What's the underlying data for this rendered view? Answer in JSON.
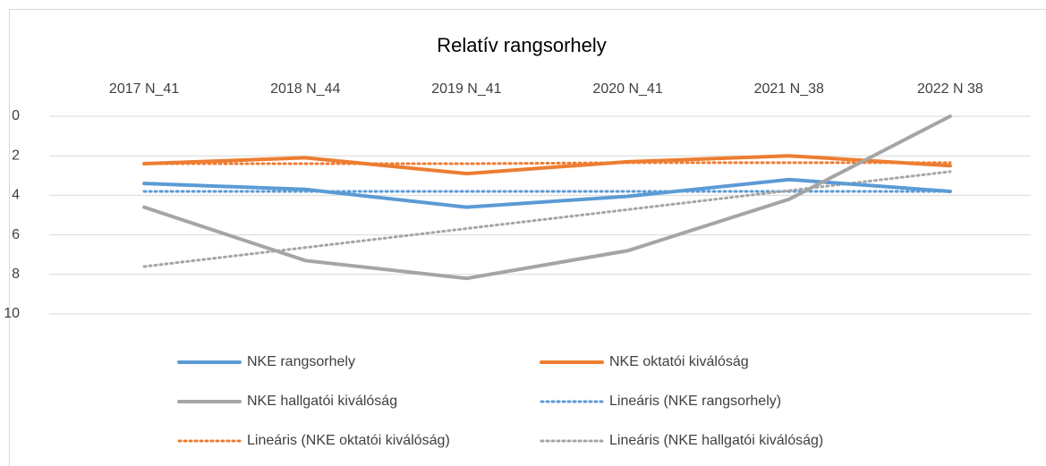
{
  "chart_data": {
    "type": "line",
    "title": "Relatív rangsorhely",
    "categories": [
      "2017 N_41",
      "2018 N_44",
      "2019 N_41",
      "2020 N_41",
      "2021 N_38",
      "2022 N 38"
    ],
    "ylim": [
      0,
      10
    ],
    "yticks": [
      0,
      2,
      4,
      6,
      8,
      10
    ],
    "y_inverted": true,
    "grid": true,
    "series": [
      {
        "name": "NKE rangsorhely",
        "color": "#5b9bd5",
        "style": "solid",
        "values": [
          3.4,
          3.7,
          4.6,
          4.05,
          3.2,
          3.8
        ]
      },
      {
        "name": "NKE oktatói kiválóság",
        "color": "#ed7d31",
        "style": "solid",
        "values": [
          2.4,
          2.1,
          2.9,
          2.3,
          2.0,
          2.5
        ]
      },
      {
        "name": "NKE hallgatói kiválóság",
        "color": "#a5a5a5",
        "style": "solid",
        "values": [
          4.6,
          7.3,
          8.2,
          6.8,
          4.2,
          0
        ]
      },
      {
        "name": "Lineáris (NKE rangsorhely)",
        "color": "#5b9bd5",
        "style": "dotted",
        "values": [
          3.8,
          3.8,
          3.8,
          3.8,
          3.8,
          3.8
        ]
      },
      {
        "name": "Lineáris (NKE oktatói kiválóság)",
        "color": "#ed7d31",
        "style": "dotted",
        "values": [
          2.4,
          2.4,
          2.4,
          2.35,
          2.35,
          2.35
        ]
      },
      {
        "name": "Lineáris (NKE hallgatói kiválóság)",
        "color": "#a5a5a5",
        "style": "dotted",
        "values": [
          7.6,
          6.64,
          5.68,
          4.72,
          3.76,
          2.8
        ]
      }
    ]
  }
}
